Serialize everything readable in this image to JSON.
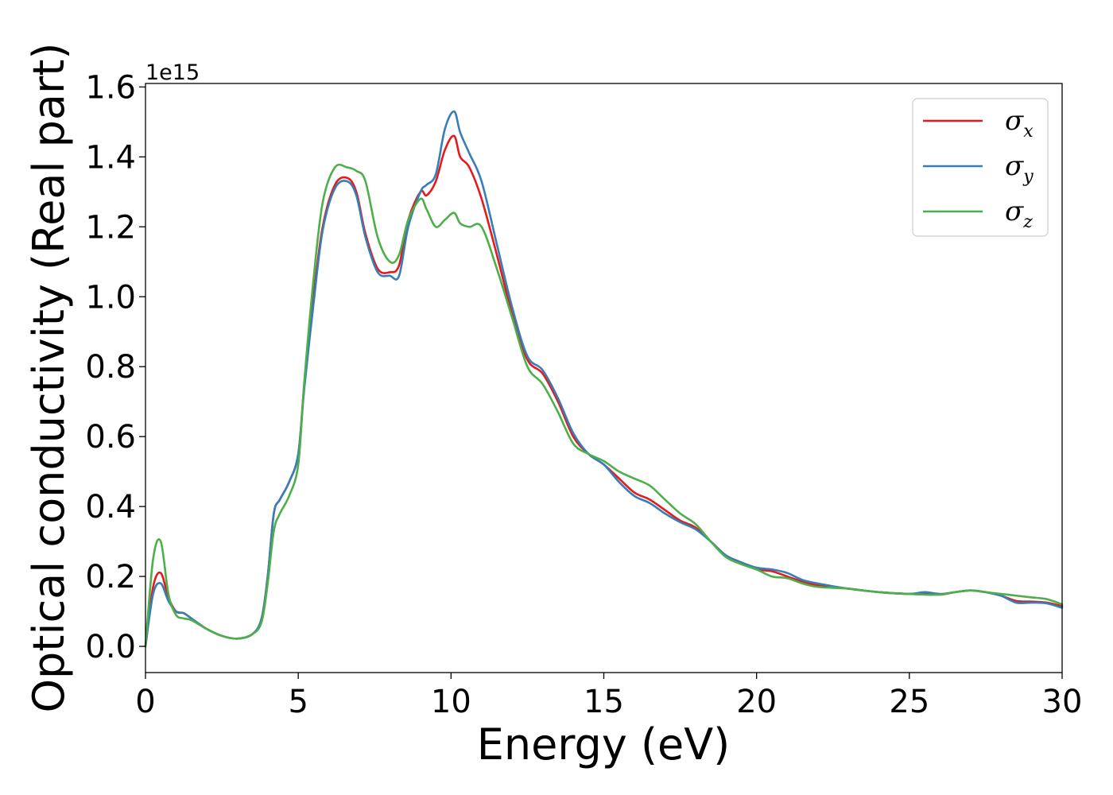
{
  "chart_data": {
    "type": "line",
    "xlabel": "Energy (eV)",
    "ylabel": "Optical conductivity (Real part)",
    "y_offset_label": "1e15",
    "xlim": [
      0,
      30
    ],
    "ylim": [
      -0.075,
      1.61
    ],
    "x_ticks": [
      0,
      5,
      10,
      15,
      20,
      25,
      30
    ],
    "x_tick_labels": [
      "0",
      "5",
      "10",
      "15",
      "20",
      "25",
      "30"
    ],
    "y_ticks": [
      0.0,
      0.2,
      0.4,
      0.6,
      0.8,
      1.0,
      1.2,
      1.4,
      1.6
    ],
    "y_tick_labels": [
      "0.0",
      "0.2",
      "0.4",
      "0.6",
      "0.8",
      "1.0",
      "1.2",
      "1.4",
      "1.6"
    ],
    "grid": false,
    "legend_position": "top-right",
    "series": [
      {
        "name": "σx",
        "legend_symbol": "σ",
        "legend_sub": "x",
        "color": "#e41a1c",
        "x": [
          0,
          0.25,
          0.5,
          0.75,
          1,
          1.25,
          1.5,
          2,
          2.5,
          3,
          3.5,
          3.8,
          4,
          4.2,
          4.4,
          4.7,
          5,
          5.2,
          5.5,
          5.8,
          6.2,
          6.6,
          6.9,
          7.2,
          7.6,
          8,
          8.3,
          8.6,
          9,
          9.2,
          9.5,
          9.8,
          10.1,
          10.3,
          10.6,
          11,
          11.5,
          12,
          12.5,
          13,
          13.5,
          14,
          14.5,
          15,
          15.5,
          16,
          16.5,
          17,
          17.5,
          18,
          18.5,
          19,
          19.5,
          20,
          20.5,
          21,
          21.5,
          22,
          23,
          24,
          25,
          25.5,
          26,
          26.5,
          27,
          27.5,
          28,
          28.5,
          29,
          29.5,
          30
        ],
        "y": [
          0,
          0.17,
          0.21,
          0.14,
          0.1,
          0.095,
          0.08,
          0.05,
          0.03,
          0.022,
          0.035,
          0.08,
          0.2,
          0.38,
          0.42,
          0.47,
          0.55,
          0.75,
          1.0,
          1.2,
          1.32,
          1.34,
          1.3,
          1.18,
          1.08,
          1.07,
          1.09,
          1.22,
          1.3,
          1.29,
          1.33,
          1.42,
          1.46,
          1.4,
          1.37,
          1.28,
          1.12,
          0.95,
          0.82,
          0.78,
          0.7,
          0.6,
          0.55,
          0.52,
          0.48,
          0.44,
          0.42,
          0.39,
          0.36,
          0.34,
          0.3,
          0.26,
          0.24,
          0.22,
          0.215,
          0.2,
          0.185,
          0.175,
          0.165,
          0.155,
          0.15,
          0.152,
          0.148,
          0.155,
          0.16,
          0.155,
          0.145,
          0.13,
          0.128,
          0.125,
          0.115
        ]
      },
      {
        "name": "σy",
        "legend_symbol": "σ",
        "legend_sub": "y",
        "color": "#377eb8",
        "x": [
          0,
          0.25,
          0.5,
          0.75,
          1,
          1.25,
          1.5,
          2,
          2.5,
          3,
          3.5,
          3.8,
          4,
          4.2,
          4.4,
          4.7,
          5,
          5.2,
          5.5,
          5.8,
          6.2,
          6.6,
          6.9,
          7.2,
          7.6,
          8,
          8.3,
          8.6,
          9,
          9.2,
          9.5,
          9.8,
          10.1,
          10.3,
          10.6,
          11,
          11.5,
          12,
          12.5,
          13,
          13.5,
          14,
          14.5,
          15,
          15.5,
          16,
          16.5,
          17,
          17.5,
          18,
          18.5,
          19,
          19.5,
          20,
          20.5,
          21,
          21.5,
          22,
          23,
          24,
          25,
          25.5,
          26,
          26.5,
          27,
          27.5,
          28,
          28.5,
          29,
          29.5,
          30
        ],
        "y": [
          0,
          0.15,
          0.18,
          0.13,
          0.1,
          0.095,
          0.08,
          0.05,
          0.03,
          0.022,
          0.035,
          0.08,
          0.2,
          0.38,
          0.42,
          0.47,
          0.55,
          0.74,
          0.98,
          1.19,
          1.31,
          1.33,
          1.29,
          1.17,
          1.07,
          1.06,
          1.06,
          1.2,
          1.3,
          1.32,
          1.35,
          1.48,
          1.53,
          1.47,
          1.41,
          1.33,
          1.15,
          0.97,
          0.83,
          0.79,
          0.71,
          0.61,
          0.55,
          0.52,
          0.47,
          0.43,
          0.41,
          0.38,
          0.355,
          0.335,
          0.3,
          0.26,
          0.24,
          0.225,
          0.22,
          0.21,
          0.19,
          0.18,
          0.165,
          0.155,
          0.15,
          0.155,
          0.15,
          0.155,
          0.16,
          0.155,
          0.145,
          0.125,
          0.125,
          0.123,
          0.11
        ]
      },
      {
        "name": "σz",
        "legend_symbol": "σ",
        "legend_sub": "z",
        "color": "#4daf4a",
        "x": [
          0,
          0.25,
          0.5,
          0.75,
          1,
          1.25,
          1.5,
          2,
          2.5,
          3,
          3.5,
          3.8,
          4,
          4.2,
          4.4,
          4.7,
          5,
          5.2,
          5.5,
          5.8,
          6.2,
          6.6,
          6.9,
          7.2,
          7.6,
          8,
          8.3,
          8.6,
          9,
          9.2,
          9.5,
          9.8,
          10.1,
          10.3,
          10.6,
          11,
          11.5,
          12,
          12.5,
          13,
          13.5,
          14,
          14.5,
          15,
          15.5,
          16,
          16.5,
          17,
          17.5,
          18,
          18.5,
          19,
          19.5,
          20,
          20.5,
          21,
          21.5,
          22,
          23,
          24,
          25,
          25.5,
          26,
          26.5,
          27,
          27.5,
          28,
          28.5,
          29,
          29.5,
          30
        ],
        "y": [
          0,
          0.25,
          0.3,
          0.15,
          0.09,
          0.08,
          0.075,
          0.05,
          0.03,
          0.022,
          0.035,
          0.07,
          0.18,
          0.33,
          0.38,
          0.43,
          0.52,
          0.76,
          1.05,
          1.27,
          1.37,
          1.37,
          1.36,
          1.33,
          1.17,
          1.1,
          1.12,
          1.22,
          1.28,
          1.25,
          1.2,
          1.22,
          1.24,
          1.21,
          1.2,
          1.2,
          1.08,
          0.94,
          0.8,
          0.75,
          0.67,
          0.58,
          0.55,
          0.53,
          0.5,
          0.48,
          0.46,
          0.42,
          0.38,
          0.35,
          0.3,
          0.255,
          0.235,
          0.22,
          0.2,
          0.195,
          0.18,
          0.17,
          0.165,
          0.155,
          0.15,
          0.148,
          0.148,
          0.155,
          0.16,
          0.155,
          0.15,
          0.145,
          0.14,
          0.135,
          0.12
        ]
      }
    ]
  }
}
